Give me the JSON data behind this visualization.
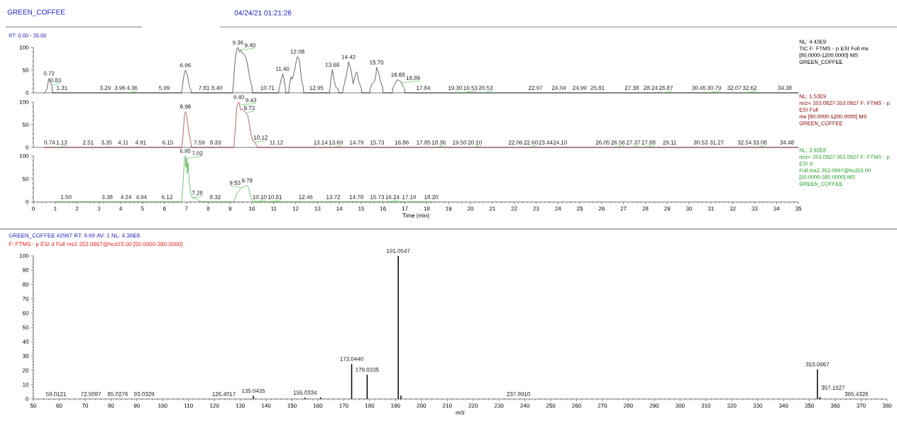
{
  "chart_data": [
    {
      "type": "line",
      "title": "GREEN_COFFEE",
      "subtitle": "04/24/21 01:21:26",
      "x": [
        0.5,
        0.55,
        0.62,
        0.68,
        0.72,
        0.76,
        0.8,
        0.85,
        0.87,
        6.78,
        6.8,
        6.85,
        6.9,
        6.96,
        7.0,
        7.05,
        7.1,
        7.15,
        7.21,
        7.23,
        9.11,
        9.13,
        9.24,
        9.32,
        9.36,
        9.43,
        9.49,
        9.57,
        9.64,
        9.73,
        9.78,
        9.84,
        9.89,
        9.95,
        10.0,
        10.02,
        11.22,
        11.24,
        11.33,
        11.41,
        11.47,
        11.52,
        11.54,
        11.69,
        11.71,
        11.79,
        11.84,
        11.89,
        11.96,
        12.02,
        12.08,
        12.14,
        12.2,
        12.27,
        12.35,
        12.37,
        13.55,
        13.57,
        13.63,
        13.68,
        13.76,
        13.84,
        13.95,
        13.97,
        14.15,
        14.17,
        14.25,
        14.33,
        14.42,
        14.48,
        14.55,
        14.63,
        14.71,
        14.76,
        14.8,
        14.87,
        15.01,
        15.03,
        15.39,
        15.41,
        15.52,
        15.61,
        15.68,
        15.7,
        15.74,
        15.79,
        15.88,
        15.98,
        16.0,
        16.42,
        16.44,
        16.52,
        16.6,
        16.66,
        16.68,
        16.71,
        16.78,
        16.82,
        16.9,
        16.98,
        17.0,
        35
      ],
      "series": [
        {
          "color": "#000000",
          "values": [
            0,
            2,
            8,
            25,
            32,
            22,
            20,
            15,
            0,
            0,
            5,
            25,
            42,
            50,
            45,
            38,
            25,
            12,
            6,
            0,
            0,
            7,
            77,
            98,
            100,
            90,
            94,
            87,
            85,
            77,
            67,
            51,
            35,
            22,
            15,
            0,
            0,
            8,
            28,
            42,
            30,
            15,
            0,
            0,
            16,
            35,
            30,
            38,
            51,
            68,
            80,
            76,
            61,
            30,
            12,
            0,
            0,
            10,
            35,
            51,
            28,
            12,
            9,
            0,
            0,
            8,
            25,
            41,
            68,
            60,
            46,
            20,
            35,
            44,
            46,
            28,
            9,
            0,
            0,
            9,
            22,
            25,
            41,
            56,
            52,
            46,
            25,
            12,
            0,
            0,
            9,
            18,
            26,
            27,
            29,
            28,
            26,
            25,
            15,
            10,
            0,
            0
          ]
        }
      ],
      "xlim": [
        0,
        35
      ],
      "ylim": [
        0,
        100
      ],
      "yticks": [
        0,
        50,
        100
      ],
      "tick_labels": "y",
      "annotations": [
        "RT: 0.00 - 35.00",
        "NL: 4.43E9",
        "TIC F: FTMS - p ESI Full ms",
        "[80.0000-1200.0000] MS",
        "GREEN_COFFEE",
        {
          "text": "0.72",
          "x": 0.72,
          "y": 32
        },
        {
          "text": "0.83",
          "x": 0.83,
          "y": 17
        },
        {
          "text": "1.31",
          "x": 1.31,
          "y": 0
        },
        {
          "text": "3.29",
          "x": 3.29,
          "y": 0
        },
        {
          "text": "3.96",
          "x": 3.96,
          "y": 0
        },
        {
          "text": "4.36",
          "x": 4.36,
          "y": 0
        },
        {
          "text": "5.99",
          "x": 5.99,
          "y": 0
        },
        {
          "text": "6.96",
          "x": 6.96,
          "y": 50
        },
        {
          "text": "7.81",
          "x": 7.81,
          "y": 0
        },
        {
          "text": "8.40",
          "x": 8.4,
          "y": 0
        },
        {
          "text": "9.36",
          "x": 9.36,
          "y": 100
        },
        {
          "text": "9.40",
          "x": 9.4,
          "y": 94
        },
        {
          "text": "10.71",
          "x": 10.71,
          "y": 0
        },
        {
          "text": "11.40",
          "x": 11.4,
          "y": 42
        },
        {
          "text": "12.08",
          "x": 12.08,
          "y": 80
        },
        {
          "text": "12.95",
          "x": 12.95,
          "y": 0
        },
        {
          "text": "13.68",
          "x": 13.68,
          "y": 51
        },
        {
          "text": "14.42",
          "x": 14.42,
          "y": 68
        },
        {
          "text": "15.70",
          "x": 15.7,
          "y": 56
        },
        {
          "text": "16.68",
          "x": 16.68,
          "y": 29
        },
        {
          "text": "16.86",
          "x": 16.86,
          "y": 22
        },
        {
          "text": "17.84",
          "x": 17.84,
          "y": 0
        },
        {
          "text": "19.30",
          "x": 19.3,
          "y": 0
        },
        {
          "text": "19.53",
          "x": 19.53,
          "y": 0
        },
        {
          "text": "20.53",
          "x": 20.53,
          "y": 0
        },
        {
          "text": "22.97",
          "x": 22.97,
          "y": 0
        },
        {
          "text": "24.04",
          "x": 24.04,
          "y": 0
        },
        {
          "text": "24.99",
          "x": 24.99,
          "y": 0
        },
        {
          "text": "25.81",
          "x": 25.81,
          "y": 0
        },
        {
          "text": "27.38",
          "x": 27.38,
          "y": 0
        },
        {
          "text": "28.24",
          "x": 28.24,
          "y": 0
        },
        {
          "text": "28.87",
          "x": 28.87,
          "y": 0
        },
        {
          "text": "30.45",
          "x": 30.45,
          "y": 0
        },
        {
          "text": "30.79",
          "x": 30.79,
          "y": 0
        },
        {
          "text": "32.07",
          "x": 32.07,
          "y": 0
        },
        {
          "text": "32.62",
          "x": 32.62,
          "y": 0
        },
        {
          "text": "34.38",
          "x": 34.38,
          "y": 0
        }
      ]
    },
    {
      "type": "line",
      "x": [
        0.5,
        6.78,
        6.8,
        6.86,
        6.91,
        6.96,
        7.02,
        7.07,
        7.13,
        7.21,
        7.23,
        9.16,
        9.18,
        9.26,
        9.31,
        9.36,
        9.4,
        9.43,
        9.49,
        9.56,
        9.64,
        9.73,
        9.81,
        9.89,
        9.96,
        10.05,
        10.14,
        10.25,
        35
      ],
      "series": [
        {
          "color": "#8b0000",
          "values": [
            0,
            0,
            3,
            34,
            70,
            79,
            70,
            49,
            28,
            10,
            0,
            0,
            3,
            54,
            91,
            96,
            100,
            93,
            83,
            85,
            80,
            76,
            70,
            49,
            28,
            13,
            11,
            0,
            0
          ]
        }
      ],
      "xlim": [
        0,
        35
      ],
      "ylim": [
        0,
        100
      ],
      "yticks": [
        0,
        50,
        100
      ],
      "tick_labels": "y",
      "annotations": [
        "NL: 1.53E9",
        "m/z= 353.0827-353.0927 F: FTMS - p ESI Full",
        "ms [80.0000-1200.0000] MS",
        "GREEN_COFFEE",
        {
          "text": "0.74",
          "x": 0.74,
          "y": 0
        },
        {
          "text": "1.13",
          "x": 1.13,
          "y": 0
        },
        {
          "text": "2.51",
          "x": 2.51,
          "y": 0
        },
        {
          "text": "3.35",
          "x": 3.35,
          "y": 0
        },
        {
          "text": "4.11",
          "x": 4.11,
          "y": 0
        },
        {
          "text": "4.91",
          "x": 4.91,
          "y": 0
        },
        {
          "text": "6.15",
          "x": 6.15,
          "y": 0
        },
        {
          "text": "6.96",
          "x": 6.96,
          "y": 79
        },
        {
          "text": "7.59",
          "x": 7.59,
          "y": 0
        },
        {
          "text": "8.33",
          "x": 8.33,
          "y": 0
        },
        {
          "text": "9.40",
          "x": 9.4,
          "y": 100
        },
        {
          "text": "9.43",
          "x": 9.43,
          "y": 93
        },
        {
          "text": "9.73",
          "x": 9.73,
          "y": 76
        },
        {
          "text": "10.12",
          "x": 10.12,
          "y": 11
        },
        {
          "text": "11.12",
          "x": 11.12,
          "y": 0
        },
        {
          "text": "13.14",
          "x": 13.14,
          "y": 0
        },
        {
          "text": "13.69",
          "x": 13.69,
          "y": 0
        },
        {
          "text": "14.79",
          "x": 14.79,
          "y": 0
        },
        {
          "text": "15.73",
          "x": 15.73,
          "y": 0
        },
        {
          "text": "16.86",
          "x": 16.86,
          "y": 0
        },
        {
          "text": "17.85",
          "x": 17.85,
          "y": 0
        },
        {
          "text": "18.36",
          "x": 18.36,
          "y": 0
        },
        {
          "text": "19.50",
          "x": 19.5,
          "y": 0
        },
        {
          "text": "20.10",
          "x": 20.1,
          "y": 0
        },
        {
          "text": "22.06",
          "x": 22.06,
          "y": 0
        },
        {
          "text": "22.60",
          "x": 22.6,
          "y": 0
        },
        {
          "text": "23.44",
          "x": 23.44,
          "y": 0
        },
        {
          "text": "24.10",
          "x": 24.1,
          "y": 0
        },
        {
          "text": "26.05",
          "x": 26.05,
          "y": 0
        },
        {
          "text": "26.56",
          "x": 26.56,
          "y": 0
        },
        {
          "text": "27.37",
          "x": 27.37,
          "y": 0
        },
        {
          "text": "27.88",
          "x": 27.88,
          "y": 0
        },
        {
          "text": "29.11",
          "x": 29.11,
          "y": 0
        },
        {
          "text": "30.53",
          "x": 30.53,
          "y": 0
        },
        {
          "text": "31.27",
          "x": 31.27,
          "y": 0
        },
        {
          "text": "32.54",
          "x": 32.54,
          "y": 0
        },
        {
          "text": "33.08",
          "x": 33.08,
          "y": 0
        },
        {
          "text": "34.48",
          "x": 34.48,
          "y": 0
        }
      ]
    },
    {
      "type": "line",
      "xlabel": "Time (min)",
      "x": [
        1.0,
        2.0,
        3.0,
        4.0,
        5.0,
        6.0,
        6.7,
        6.78,
        6.86,
        6.91,
        6.95,
        6.98,
        7.02,
        7.04,
        7.08,
        7.13,
        7.18,
        7.26,
        7.34,
        7.45,
        7.55,
        7.7,
        8.0,
        8.5,
        9.15,
        9.22,
        9.29,
        9.35,
        9.4,
        9.46,
        9.53,
        9.62,
        9.7,
        9.78,
        9.84,
        9.89,
        9.96,
        10.02,
        10.1,
        11.0,
        12.0,
        13.0,
        14.0,
        15.0,
        16.0,
        17.0,
        18.0,
        18.3
      ],
      "series": [
        {
          "color": "#1a9a1a",
          "values": [
            0,
            0,
            0,
            0,
            0,
            0,
            0,
            2,
            49,
            90,
            100,
            75,
            95,
            62,
            85,
            49,
            23,
            10,
            8,
            8,
            3,
            0,
            0,
            0,
            0,
            5,
            18,
            20,
            23,
            28,
            31,
            33,
            35,
            36,
            32,
            23,
            10,
            3,
            0,
            0,
            0,
            0,
            0,
            0,
            0,
            0,
            0,
            0
          ]
        }
      ],
      "xlim": [
        0,
        35
      ],
      "xticks": [
        0,
        1,
        2,
        3,
        4,
        5,
        6,
        7,
        8,
        9,
        10,
        11,
        12,
        13,
        14,
        15,
        16,
        17,
        18,
        19,
        20,
        21,
        22,
        23,
        24,
        25,
        26,
        27,
        28,
        29,
        30,
        31,
        32,
        33,
        34,
        35
      ],
      "ylim": [
        0,
        100
      ],
      "yticks": [
        0,
        50,
        100
      ],
      "annotations": [
        "NL: 2.92E8",
        "m/z= 353.0827-353.0927 F: FTMS - p ESI d",
        "Full ms2 353.0867@hcd15.00",
        "[50.0000-380.0000] MS",
        "GREEN_COFFEE",
        {
          "text": "1.50",
          "x": 1.5,
          "y": 0
        },
        {
          "text": "3.38",
          "x": 3.38,
          "y": 0
        },
        {
          "text": "4.24",
          "x": 4.24,
          "y": 0
        },
        {
          "text": "4.94",
          "x": 4.94,
          "y": 0
        },
        {
          "text": "6.12",
          "x": 6.12,
          "y": 0
        },
        {
          "text": "6.95",
          "x": 6.95,
          "y": 100
        },
        {
          "text": "7.02",
          "x": 7.02,
          "y": 95
        },
        {
          "text": "7.28",
          "x": 7.28,
          "y": 9
        },
        {
          "text": "8.32",
          "x": 8.32,
          "y": 0
        },
        {
          "text": "9.53",
          "x": 9.53,
          "y": 31
        },
        {
          "text": "9.78",
          "x": 9.78,
          "y": 36
        },
        {
          "text": "10.10",
          "x": 10.1,
          "y": 0
        },
        {
          "text": "10.81",
          "x": 10.81,
          "y": 0
        },
        {
          "text": "12.46",
          "x": 12.46,
          "y": 0
        },
        {
          "text": "13.72",
          "x": 13.72,
          "y": 0
        },
        {
          "text": "14.78",
          "x": 14.78,
          "y": 0
        },
        {
          "text": "15.73",
          "x": 15.73,
          "y": 0
        },
        {
          "text": "16.24",
          "x": 16.24,
          "y": 0
        },
        {
          "text": "17.19",
          "x": 17.19,
          "y": 0
        },
        {
          "text": "18.20",
          "x": 18.2,
          "y": 0
        }
      ]
    },
    {
      "type": "bar",
      "title": "GREEN_COFFEE #2967  RT: 9.69  AV: 1  NL: 4.36E8",
      "subtitle": "F: FTMS - p ESI d Full ms2 353.0867@hcd15.00 [50.0000-380.0000]",
      "xlabel": "m/z",
      "x": [
        135.0435,
        155.0334,
        161.0,
        173.044,
        179.0335,
        191.0547,
        192.1,
        353.0867,
        354.1
      ],
      "values": [
        2.2,
        1.0,
        1.2,
        24.5,
        17,
        100,
        2.4,
        20.7,
        1.4
      ],
      "color": "#000000",
      "xlim": [
        50,
        380
      ],
      "xticks": [
        50,
        60,
        70,
        80,
        90,
        100,
        110,
        120,
        130,
        140,
        150,
        160,
        170,
        180,
        190,
        200,
        210,
        220,
        230,
        240,
        250,
        260,
        270,
        280,
        290,
        300,
        310,
        320,
        330,
        340,
        350,
        360,
        370,
        380
      ],
      "ylim": [
        0,
        100
      ],
      "yticks": [
        0,
        10,
        20,
        30,
        40,
        50,
        60,
        70,
        80,
        90,
        100
      ],
      "annotations": [
        "59.0121",
        "72.5097",
        "85.0276",
        "93.0329",
        "126.4017",
        {
          "text": "135.0435",
          "x": 135.0435,
          "y": 2.2
        },
        {
          "text": "155.0334",
          "x": 155.0334,
          "y": 1.0
        },
        {
          "text": "173.0440",
          "x": 173.044,
          "y": 24.5
        },
        {
          "text": "179.0335",
          "x": 179.0335,
          "y": 17
        },
        {
          "text": "191.0547",
          "x": 191.0547,
          "y": 100
        },
        "237.9910",
        {
          "text": "353.0867",
          "x": 353.0867,
          "y": 20.7
        },
        "357.1527",
        "365.4326"
      ]
    }
  ]
}
